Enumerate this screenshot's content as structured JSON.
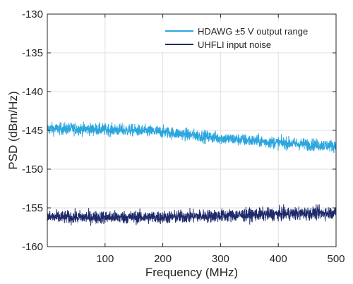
{
  "chart_data": {
    "type": "line",
    "title": "",
    "xlabel": "Frequency (MHz)",
    "ylabel": "PSD (dBm/Hz)",
    "xlim": [
      0,
      500
    ],
    "ylim": [
      -160,
      -130
    ],
    "xticks": [
      100,
      200,
      300,
      400,
      500
    ],
    "yticks": [
      -130,
      -135,
      -140,
      -145,
      -150,
      -155,
      -160
    ],
    "grid": true,
    "legend_position": "top-right",
    "series": [
      {
        "name": "HDAWG ±5 V output range",
        "color": "#2ba6de",
        "x": [
          0,
          50,
          100,
          150,
          200,
          250,
          300,
          350,
          400,
          450,
          500
        ],
        "values": [
          -144.8,
          -144.8,
          -144.9,
          -145.0,
          -145.2,
          -145.6,
          -146.0,
          -146.3,
          -146.6,
          -146.8,
          -147.0
        ],
        "noise_amplitude_db": 0.7
      },
      {
        "name": "UHFLI input noise",
        "color": "#1f2a6b",
        "x": [
          0,
          50,
          100,
          150,
          200,
          250,
          300,
          350,
          400,
          450,
          500
        ],
        "values": [
          -156.2,
          -156.2,
          -156.2,
          -156.2,
          -156.2,
          -156.1,
          -156.0,
          -155.9,
          -155.8,
          -155.7,
          -155.6
        ],
        "noise_amplitude_db": 0.75
      }
    ]
  }
}
